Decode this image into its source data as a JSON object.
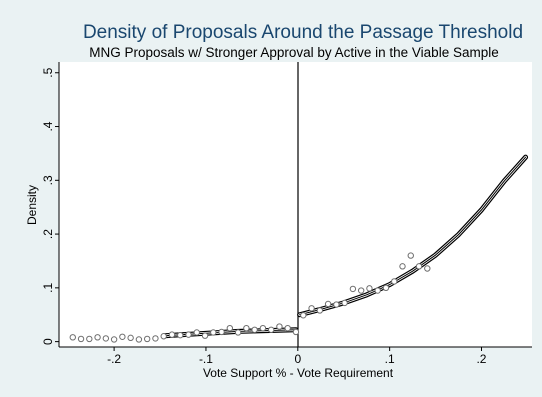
{
  "chart_data": {
    "type": "scatter",
    "title": "Density of Proposals Around the Passage Threshold",
    "subtitle": "MNG Proposals w/ Stronger Approval by Active in the Viable Sample",
    "xlabel": "Vote Support % - Vote Requirement",
    "ylabel": "Density",
    "xlim": [
      -0.26,
      0.255
    ],
    "ylim": [
      -0.01,
      0.52
    ],
    "x_ticks": [
      -0.2,
      -0.1,
      0,
      0.1,
      0.2
    ],
    "x_tick_labels": [
      "-.2",
      "-.1",
      "0",
      ".1",
      ".2"
    ],
    "y_ticks": [
      0,
      0.1,
      0.2,
      0.3,
      0.4,
      0.5
    ],
    "y_tick_labels": [
      "0",
      ".1",
      ".2",
      ".3",
      ".4",
      ".5"
    ],
    "grid": false,
    "legend": "none",
    "threshold_line_x": 0,
    "series": [
      {
        "type": "scatter",
        "values": [
          [
            -0.245,
            0.008
          ],
          [
            -0.236,
            0.005
          ],
          [
            -0.227,
            0.005
          ],
          [
            -0.218,
            0.008
          ],
          [
            -0.209,
            0.006
          ],
          [
            -0.2,
            0.004
          ],
          [
            -0.191,
            0.009
          ],
          [
            -0.182,
            0.007
          ],
          [
            -0.173,
            0.004
          ],
          [
            -0.164,
            0.005
          ],
          [
            -0.155,
            0.006
          ],
          [
            -0.146,
            0.01
          ],
          [
            -0.137,
            0.013
          ],
          [
            -0.128,
            0.012
          ],
          [
            -0.119,
            0.013
          ],
          [
            -0.11,
            0.017
          ],
          [
            -0.101,
            0.011
          ],
          [
            -0.092,
            0.017
          ],
          [
            -0.083,
            0.018
          ],
          [
            -0.074,
            0.025
          ],
          [
            -0.065,
            0.017
          ],
          [
            -0.056,
            0.025
          ],
          [
            -0.047,
            0.022
          ],
          [
            -0.038,
            0.025
          ],
          [
            -0.029,
            0.022
          ],
          [
            -0.02,
            0.028
          ],
          [
            -0.011,
            0.025
          ],
          [
            -0.002,
            0.018
          ],
          [
            0.006,
            0.049
          ],
          [
            0.015,
            0.062
          ],
          [
            0.024,
            0.058
          ],
          [
            0.033,
            0.07
          ],
          [
            0.042,
            0.069
          ],
          [
            0.051,
            0.072
          ],
          [
            0.06,
            0.098
          ],
          [
            0.069,
            0.095
          ],
          [
            0.078,
            0.099
          ],
          [
            0.087,
            0.095
          ],
          [
            0.096,
            0.1
          ],
          [
            0.105,
            0.112
          ],
          [
            0.114,
            0.14
          ],
          [
            0.123,
            0.16
          ],
          [
            0.132,
            0.14
          ],
          [
            0.141,
            0.136
          ]
        ]
      },
      {
        "type": "line",
        "x": [
          -0.145,
          -0.125,
          -0.105,
          -0.085,
          -0.065,
          -0.045,
          -0.025,
          -0.002
        ],
        "values": [
          0.011,
          0.013,
          0.015,
          0.017,
          0.019,
          0.02,
          0.021,
          0.022
        ]
      },
      {
        "type": "line",
        "x": [
          0.002,
          0.025,
          0.05,
          0.075,
          0.1,
          0.125,
          0.15,
          0.175,
          0.2,
          0.225,
          0.248
        ],
        "values": [
          0.05,
          0.06,
          0.072,
          0.087,
          0.106,
          0.131,
          0.161,
          0.199,
          0.245,
          0.299,
          0.343
        ]
      }
    ]
  }
}
